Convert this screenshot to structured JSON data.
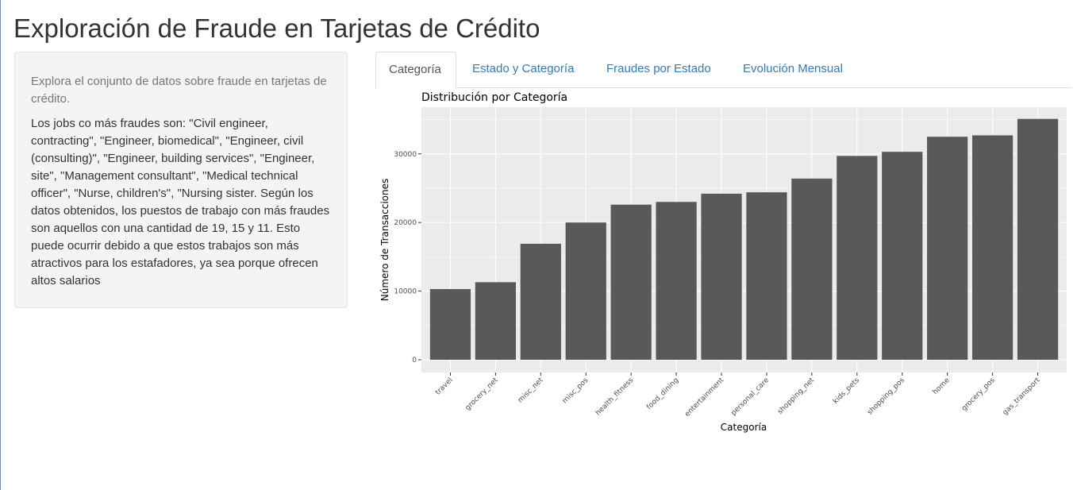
{
  "page": {
    "title": "Exploración de Fraude en Tarjetas de Crédito"
  },
  "sidebar": {
    "intro": "Explora el conjunto de datos sobre fraude en tarjetas de crédito.",
    "body": "Los jobs co más fraudes son: \"Civil engineer, contracting\", \"Engineer, biomedical\", \"Engineer, civil (consulting)\", \"Engineer, building services\", \"Engineer, site\", \"Management consultant\", \"Medical technical officer\", \"Nurse, children's\", \"Nursing sister. Según los datos obtenidos, los puestos de trabajo con más fraudes son aquellos con una cantidad de 19, 15 y 11. Esto puede ocurrir debido a que estos trabajos son más atractivos para los estafadores, ya sea porque ofrecen altos salarios"
  },
  "tabs": [
    {
      "label": "Categoría",
      "active": true
    },
    {
      "label": "Estado y Categoría",
      "active": false
    },
    {
      "label": "Fraudes por Estado",
      "active": false
    },
    {
      "label": "Evolución Mensual",
      "active": false
    }
  ],
  "colors": {
    "link": "#337ab7",
    "bar": "#595959",
    "panel": "#ebebeb",
    "gridline": "#ffffff"
  },
  "chart_data": {
    "type": "bar",
    "title": "Distribución por Categoría",
    "xlabel": "Categoría",
    "ylabel": "Número de Transacciones",
    "categories": [
      "travel",
      "grocery_net",
      "misc_net",
      "misc_pos",
      "health_fitness",
      "food_dining",
      "entertainment",
      "personal_care",
      "shopping_net",
      "kids_pets",
      "shopping_pos",
      "home",
      "grocery_pos",
      "gas_transport"
    ],
    "values": [
      10300,
      11300,
      16900,
      20000,
      22600,
      23000,
      24200,
      24400,
      26400,
      29700,
      30300,
      32500,
      32700,
      35100
    ],
    "yticks": [
      0,
      10000,
      20000,
      30000
    ],
    "ytick_labels": [
      "0",
      "10000",
      "20000",
      "30000"
    ],
    "ylim": [
      0,
      36800
    ],
    "grid": true,
    "legend": "none"
  }
}
